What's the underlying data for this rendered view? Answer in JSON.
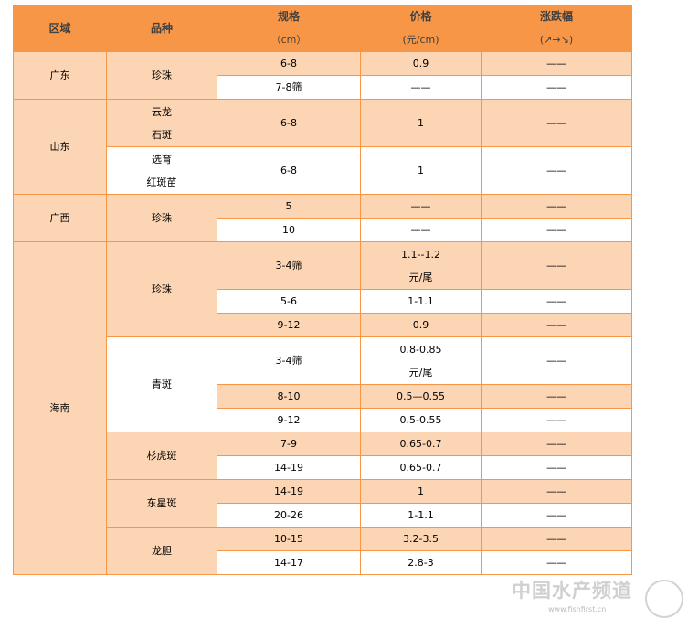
{
  "colors": {
    "header": "#F79646",
    "shade": "#FCD5B4",
    "border": "#F79646"
  },
  "header": {
    "region": "区域",
    "variety": "品种",
    "spec": "规格",
    "spec_unit": "（cm）",
    "price": "价格",
    "price_unit": "(元/cm)",
    "change": "涨跌幅",
    "change_unit": "(↗→↘)"
  },
  "rows": [
    {
      "region": "广东",
      "region_span": 2,
      "variety": [
        "珍珠"
      ],
      "variety_span": 2,
      "spec": "6-8",
      "price": [
        "0.9"
      ],
      "change": "——",
      "shade": true
    },
    {
      "spec": "7-8筛",
      "price": [
        "——"
      ],
      "change": "——",
      "shade": false
    },
    {
      "region": "山东",
      "region_span": 2,
      "variety": [
        "云龙",
        "石斑"
      ],
      "variety_span": 1,
      "spec": "6-8",
      "price": [
        "1"
      ],
      "change": "——",
      "shade": true,
      "tall": true
    },
    {
      "variety": [
        "选育",
        "红斑苗"
      ],
      "variety_span": 1,
      "variety_shade": false,
      "spec": "6-8",
      "price": [
        "1"
      ],
      "change": "——",
      "shade": false,
      "tall": true
    },
    {
      "region": "广西",
      "region_span": 2,
      "variety": [
        "珍珠"
      ],
      "variety_span": 2,
      "spec": "5",
      "price": [
        "——"
      ],
      "change": "——",
      "shade": true
    },
    {
      "spec": "10",
      "price": [
        "——"
      ],
      "change": "——",
      "shade": false
    },
    {
      "region": "海南",
      "region_span": 12,
      "variety": [
        "珍珠"
      ],
      "variety_span": 3,
      "spec": "3-4筛",
      "price": [
        "1.1--1.2",
        "元/尾"
      ],
      "change": "——",
      "shade": true,
      "tall": true
    },
    {
      "spec": "5-6",
      "price": [
        "1-1.1"
      ],
      "change": "——",
      "shade": false
    },
    {
      "spec": "9-12",
      "price": [
        "0.9"
      ],
      "change": "——",
      "shade": true
    },
    {
      "variety": [
        "青斑"
      ],
      "variety_span": 3,
      "variety_shade": false,
      "spec": "3-4筛",
      "price": [
        "0.8-0.85",
        "元/尾"
      ],
      "change": "——",
      "shade": false,
      "tall": true
    },
    {
      "spec": "8-10",
      "price": [
        "0.5—0.55"
      ],
      "change": "——",
      "shade": true
    },
    {
      "spec": "9-12",
      "price": [
        "0.5-0.55"
      ],
      "change": "——",
      "shade": false
    },
    {
      "variety": [
        "杉虎斑"
      ],
      "variety_span": 2,
      "spec": "7-9",
      "price": [
        "0.65-0.7"
      ],
      "change": "——",
      "shade": true
    },
    {
      "spec": "14-19",
      "price": [
        "0.65-0.7"
      ],
      "change": "——",
      "shade": false
    },
    {
      "variety": [
        "东星斑"
      ],
      "variety_span": 2,
      "spec": "14-19",
      "price": [
        "1"
      ],
      "change": "——",
      "shade": true
    },
    {
      "spec": "20-26",
      "price": [
        "1-1.1"
      ],
      "change": "——",
      "shade": false
    },
    {
      "variety": [
        "龙胆"
      ],
      "variety_span": 2,
      "spec": "10-15",
      "price": [
        "3.2-3.5"
      ],
      "change": "——",
      "shade": true
    },
    {
      "spec": "14-17",
      "price": [
        "2.8-3"
      ],
      "change": "——",
      "shade": false
    }
  ],
  "watermark": {
    "text": "中国水产频道",
    "url": "www.fishfirst.cn"
  }
}
